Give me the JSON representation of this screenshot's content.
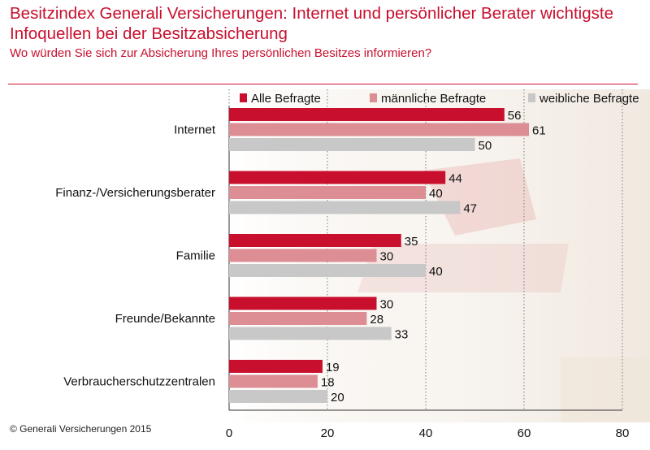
{
  "header": {
    "title": "Besitzindex Generali Versicherungen: Internet und persönlicher Berater wichtigste Infoquellen bei der Besitzabsicherung",
    "subtitle": "Wo würden Sie sich zur Absicherung Ihres persönlichen Besitzes informieren?"
  },
  "footer": {
    "copyright": "© Generali Versicherungen 2015"
  },
  "colors": {
    "accent": "#c8102e",
    "series": [
      "#c8102e",
      "#dd8d94",
      "#c8c8c8"
    ]
  },
  "chart_data": {
    "type": "bar",
    "orientation": "horizontal",
    "categories": [
      "Internet",
      "Finanz-/Versicherungsberater",
      "Familie",
      "Freunde/Bekannte",
      "Verbraucherschutzzentralen"
    ],
    "series": [
      {
        "name": "Alle Befragte",
        "values": [
          56,
          44,
          35,
          30,
          19
        ]
      },
      {
        "name": "männliche Befragte",
        "values": [
          61,
          40,
          30,
          28,
          18
        ]
      },
      {
        "name": "weibliche Befragte",
        "values": [
          50,
          47,
          40,
          33,
          20
        ]
      }
    ],
    "xlim": [
      0,
      80
    ],
    "xticks": [
      0,
      20,
      40,
      60,
      80
    ],
    "grid": true,
    "legend": "top"
  }
}
